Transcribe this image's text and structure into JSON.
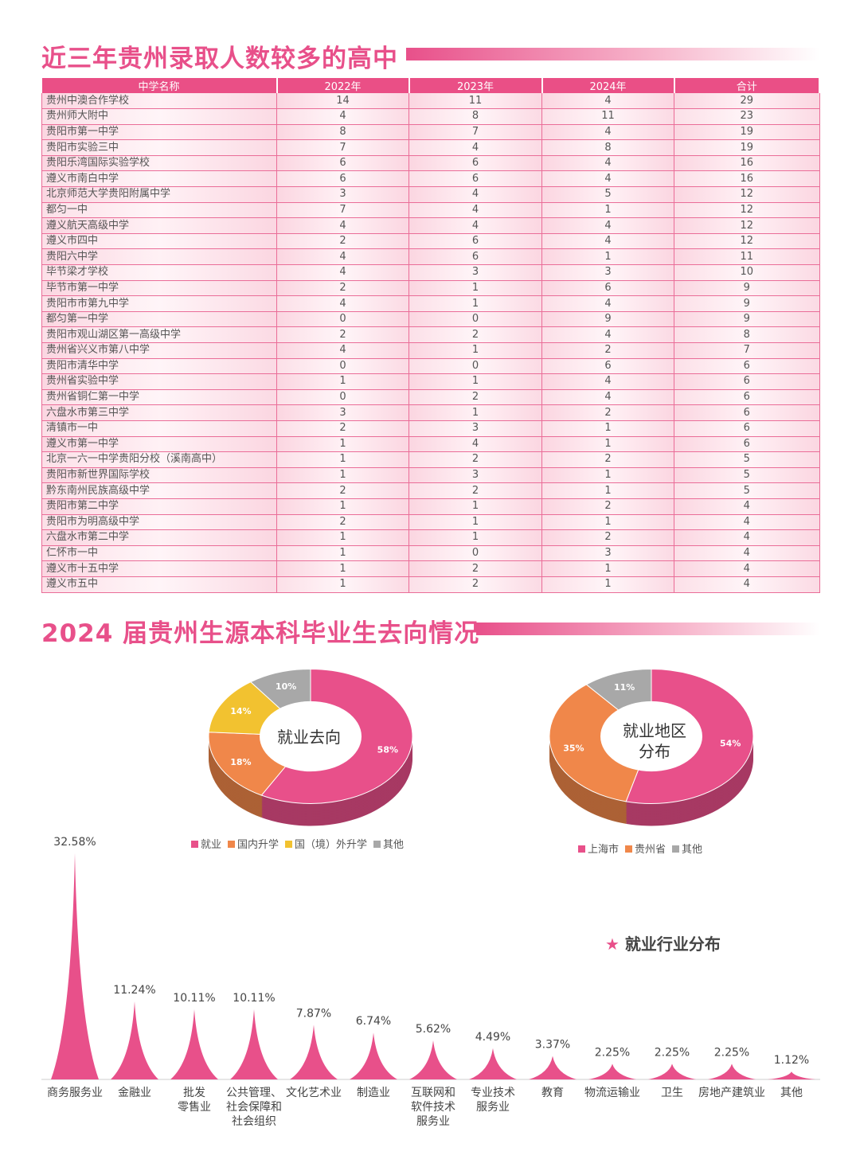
{
  "section1_title": "近三年贵州录取人数较多的高中",
  "section2_title": "2024 届贵州生源本科毕业生去向情况",
  "table": {
    "headers": [
      "中学名称",
      "2022年",
      "2023年",
      "2024年",
      "合计"
    ],
    "rows": [
      [
        "贵州中澳合作学校",
        "14",
        "11",
        "4",
        "29"
      ],
      [
        "贵州师大附中",
        "4",
        "8",
        "11",
        "23"
      ],
      [
        "贵阳市第一中学",
        "8",
        "7",
        "4",
        "19"
      ],
      [
        "贵阳市实验三中",
        "7",
        "4",
        "8",
        "19"
      ],
      [
        "贵阳乐湾国际实验学校",
        "6",
        "6",
        "4",
        "16"
      ],
      [
        "遵义市南白中学",
        "6",
        "6",
        "4",
        "16"
      ],
      [
        "北京师范大学贵阳附属中学",
        "3",
        "4",
        "5",
        "12"
      ],
      [
        "都匀一中",
        "7",
        "4",
        "1",
        "12"
      ],
      [
        "遵义航天高级中学",
        "4",
        "4",
        "4",
        "12"
      ],
      [
        "遵义市四中",
        "2",
        "6",
        "4",
        "12"
      ],
      [
        "贵阳六中学",
        "4",
        "6",
        "1",
        "11"
      ],
      [
        "毕节梁才学校",
        "4",
        "3",
        "3",
        "10"
      ],
      [
        "毕节市第一中学",
        "2",
        "1",
        "6",
        "9"
      ],
      [
        "贵阳市市第九中学",
        "4",
        "1",
        "4",
        "9"
      ],
      [
        "都匀第一中学",
        "0",
        "0",
        "9",
        "9"
      ],
      [
        "贵阳市观山湖区第一高级中学",
        "2",
        "2",
        "4",
        "8"
      ],
      [
        "贵州省兴义市第八中学",
        "4",
        "1",
        "2",
        "7"
      ],
      [
        "贵阳市清华中学",
        "0",
        "0",
        "6",
        "6"
      ],
      [
        "贵州省实验中学",
        "1",
        "1",
        "4",
        "6"
      ],
      [
        "贵州省铜仁第一中学",
        "0",
        "2",
        "4",
        "6"
      ],
      [
        "六盘水市第三中学",
        "3",
        "1",
        "2",
        "6"
      ],
      [
        "清镇市一中",
        "2",
        "3",
        "1",
        "6"
      ],
      [
        "遵义市第一中学",
        "1",
        "4",
        "1",
        "6"
      ],
      [
        "北京一六一中学贵阳分校（溪南高中）",
        "1",
        "2",
        "2",
        "5"
      ],
      [
        "贵阳市新世界国际学校",
        "1",
        "3",
        "1",
        "5"
      ],
      [
        "黔东南州民族高级中学",
        "2",
        "2",
        "1",
        "5"
      ],
      [
        "贵阳市第二中学",
        "1",
        "1",
        "2",
        "4"
      ],
      [
        "贵阳市为明高级中学",
        "2",
        "1",
        "1",
        "4"
      ],
      [
        "六盘水市第二中学",
        "1",
        "1",
        "2",
        "4"
      ],
      [
        "仁怀市一中",
        "1",
        "0",
        "3",
        "4"
      ],
      [
        "遵义市十五中学",
        "1",
        "2",
        "1",
        "4"
      ],
      [
        "遵义市五中",
        "1",
        "2",
        "1",
        "4"
      ]
    ]
  },
  "chart_data": [
    {
      "type": "pie",
      "title": "就业去向",
      "categories": [
        "就业",
        "国内升学",
        "国（境）外升学",
        "其他"
      ],
      "values": [
        58,
        18,
        14,
        10
      ],
      "labels": [
        "58%",
        "18%",
        "14%",
        "10%"
      ],
      "colors": [
        "#e8508a",
        "#f0874a",
        "#f2c230",
        "#a8a8a8"
      ]
    },
    {
      "type": "pie",
      "title_lines": [
        "就业地区",
        "分布"
      ],
      "categories": [
        "上海市",
        "贵州省",
        "其他"
      ],
      "values": [
        54,
        35,
        11
      ],
      "labels": [
        "54%",
        "35%",
        "11%"
      ],
      "colors": [
        "#e8508a",
        "#f0874a",
        "#a8a8a8"
      ]
    },
    {
      "type": "bar",
      "title": "就业行业分布",
      "star": "★",
      "categories": [
        "商务服务业",
        "金融业",
        "批发\n零售业",
        "公共管理、\n社会保障和\n社会组织",
        "文化艺术业",
        "制造业",
        "互联网和\n软件技术\n服务业",
        "专业技术\n服务业",
        "教育",
        "物流运输业",
        "卫生",
        "房地产建筑业",
        "其他"
      ],
      "values": [
        32.58,
        11.24,
        10.11,
        10.11,
        7.87,
        6.74,
        5.62,
        4.49,
        3.37,
        2.25,
        2.25,
        2.25,
        1.12
      ],
      "labels": [
        "32.58%",
        "11.24%",
        "10.11%",
        "10.11%",
        "7.87%",
        "6.74%",
        "5.62%",
        "4.49%",
        "3.37%",
        "2.25%",
        "2.25%",
        "2.25%",
        "1.12%"
      ],
      "color": "#e8508a"
    }
  ]
}
